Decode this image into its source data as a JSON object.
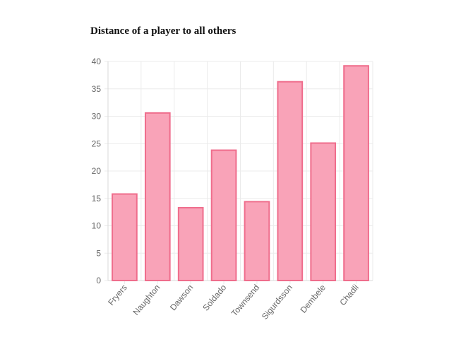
{
  "chart_data": {
    "type": "bar",
    "title": "Distance of a player to all others",
    "xlabel": "",
    "ylabel": "",
    "categories": [
      "Fryers",
      "Naughton",
      "Dawson",
      "Soldado",
      "Townsend",
      "Sigurdsson",
      "Dembele",
      "Chadli"
    ],
    "values": [
      15.8,
      30.6,
      13.3,
      23.8,
      14.4,
      36.3,
      25.1,
      39.2
    ],
    "ylim": [
      0,
      40
    ],
    "yticks": [
      0,
      5,
      10,
      15,
      20,
      25,
      30,
      35,
      40
    ],
    "grid": true,
    "legend": "none",
    "colors": {
      "bar_fill": "#f9a3b8",
      "bar_stroke": "#ef6d8c"
    }
  }
}
